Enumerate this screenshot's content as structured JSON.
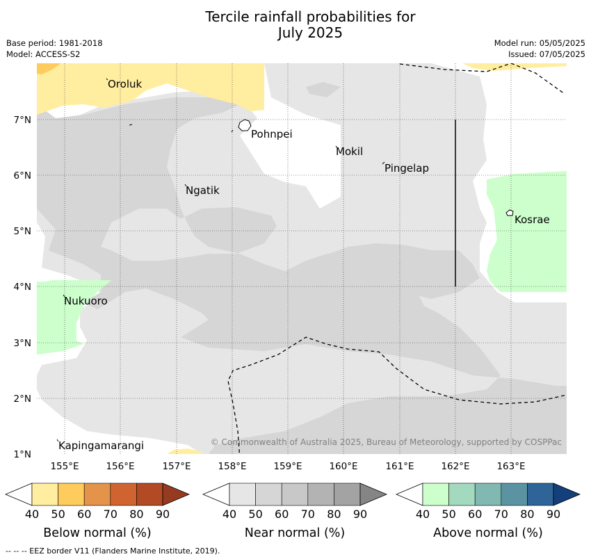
{
  "title_line1": "Tercile rainfall probabilities for",
  "title_line2": "July 2025",
  "base_period": "Base period: 1981-2018",
  "model": "Model: ACCESS-S2",
  "model_run": "Model run: 05/05/2025",
  "issued": "Issued: 07/05/2025",
  "copyright": "© Commonwealth of Australia 2025, Bureau of Meteorology, supported by COSPPac",
  "footer": "--  --  -- EEZ border V11 (Flanders Marine Institute, 2019).",
  "map": {
    "lon_labels": [
      "155°E",
      "156°E",
      "157°E",
      "158°E",
      "159°E",
      "160°E",
      "161°E",
      "162°E",
      "163°E"
    ],
    "lat_labels": [
      "7°N",
      "6°N",
      "5°N",
      "4°N",
      "3°N",
      "2°N",
      "1°N"
    ],
    "places": {
      "oroluk": "Oroluk",
      "pohnpei": "Pohnpei",
      "mokil": "Mokil",
      "pingelap": "Pingelap",
      "ngatik": "Ngatik",
      "kosrae": "Kosrae",
      "nukuoro": "Nukuoro",
      "kapingamarangi": "Kapingamarangi"
    }
  },
  "colorbars": [
    {
      "title": "Below normal (%)",
      "ticks": [
        "40",
        "50",
        "60",
        "70",
        "80",
        "90"
      ],
      "colors": [
        "#ffffff",
        "#ffeda0",
        "#fecc5c",
        "#e3934a",
        "#cf6431",
        "#b24a26",
        "#963a22"
      ]
    },
    {
      "title": "Near normal (%)",
      "ticks": [
        "40",
        "50",
        "60",
        "70",
        "80",
        "90"
      ],
      "colors": [
        "#ffffff",
        "#e6e6e6",
        "#d6d6d6",
        "#c8c8c8",
        "#b3b3b3",
        "#a3a3a3",
        "#858585"
      ]
    },
    {
      "title": "Above normal (%)",
      "ticks": [
        "40",
        "50",
        "60",
        "70",
        "80",
        "90"
      ],
      "colors": [
        "#ffffff",
        "#ccffcc",
        "#a3d9bf",
        "#82b8b2",
        "#5b93a3",
        "#2f6499",
        "#133f7a"
      ]
    }
  ]
}
